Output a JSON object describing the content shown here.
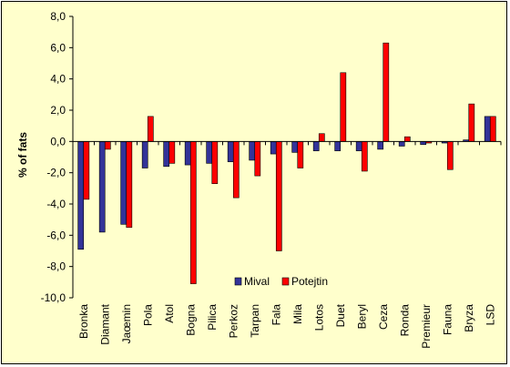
{
  "chart_data": {
    "type": "bar",
    "title": "",
    "xlabel": "",
    "ylabel": "% of fats",
    "ylim": [
      -10,
      8
    ],
    "yticks": [
      "-10,0",
      "-8,0",
      "-6,0",
      "-4,0",
      "-2,0",
      "0,0",
      "2,0",
      "4,0",
      "6,0",
      "8,0"
    ],
    "ytick_values": [
      -10,
      -8,
      -6,
      -4,
      -2,
      0,
      2,
      4,
      6,
      8
    ],
    "grid": false,
    "legend_position": "bottom-center",
    "categories": [
      "Bronka",
      "Diamant",
      "Jaœmin",
      "Pola",
      "Atol",
      "Bogna",
      "Pilica",
      "Perkoz",
      "Tarpan",
      "Fala",
      "Mila",
      "Lotos",
      "Duet",
      "Beryl",
      "Ceza",
      "Ronda",
      "Premieur",
      "Fauna",
      "Bryza",
      "LSD"
    ],
    "series": [
      {
        "name": "Mival",
        "color": "#333399",
        "values": [
          -6.9,
          -5.8,
          -5.3,
          -1.7,
          -1.6,
          -1.5,
          -1.4,
          -1.3,
          -1.2,
          -0.8,
          -0.7,
          -0.6,
          -0.6,
          -0.6,
          -0.5,
          -0.3,
          -0.2,
          -0.1,
          0.1,
          1.6
        ]
      },
      {
        "name": "Potejtin",
        "color": "#ff0000",
        "values": [
          -3.7,
          -0.5,
          -5.5,
          1.6,
          -1.4,
          -9.1,
          -2.7,
          -3.6,
          -2.2,
          -7.0,
          -1.7,
          0.5,
          4.4,
          -1.9,
          6.3,
          0.3,
          -0.1,
          -1.8,
          2.4,
          1.6
        ]
      }
    ]
  }
}
